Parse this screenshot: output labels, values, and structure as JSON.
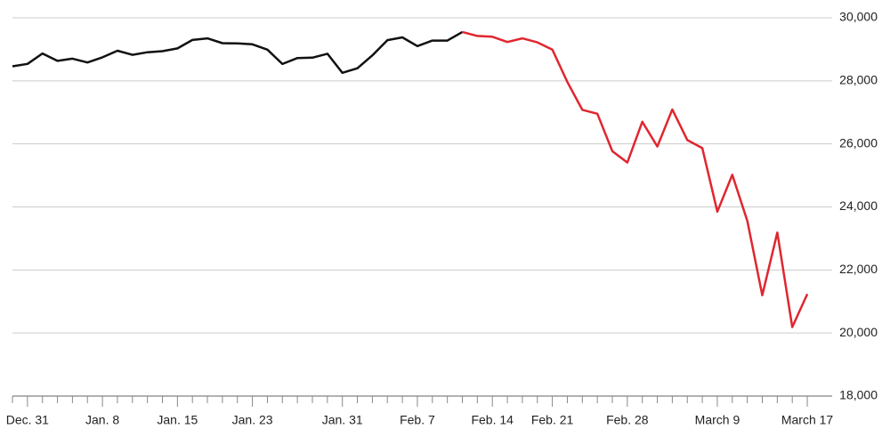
{
  "chart_data": {
    "type": "line",
    "categories": [
      null,
      "Dec. 31",
      null,
      null,
      null,
      null,
      "Jan. 8",
      null,
      null,
      null,
      null,
      "Jan. 15",
      null,
      null,
      null,
      null,
      "Jan. 23",
      null,
      null,
      null,
      null,
      null,
      "Jan. 31",
      null,
      null,
      null,
      null,
      "Feb. 7",
      null,
      null,
      null,
      null,
      "Feb. 14",
      null,
      null,
      null,
      "Feb. 21",
      null,
      null,
      null,
      null,
      "Feb. 28",
      null,
      null,
      null,
      null,
      null,
      "March 9",
      null,
      null,
      null,
      null,
      null,
      "March 17"
    ],
    "series": [
      {
        "color": "#111111",
        "values": [
          28462,
          28538,
          28868,
          28634,
          28703,
          28583,
          28745,
          28956,
          28824,
          28907,
          28940,
          29030,
          29298,
          29348,
          29196,
          29186,
          29160,
          28990,
          28536,
          28723,
          28734,
          28859,
          28256,
          28400,
          28808,
          29291,
          29380,
          29103,
          29276,
          29276,
          29551,
          null,
          null,
          null,
          null,
          null,
          null,
          null,
          null,
          null,
          null,
          null,
          null,
          null,
          null,
          null,
          null,
          null,
          null,
          null,
          null,
          null,
          null,
          null
        ]
      },
      {
        "color": "#e0262f",
        "values": [
          null,
          null,
          null,
          null,
          null,
          null,
          null,
          null,
          null,
          null,
          null,
          null,
          null,
          null,
          null,
          null,
          null,
          null,
          null,
          null,
          null,
          null,
          null,
          null,
          null,
          null,
          null,
          null,
          null,
          null,
          29551,
          29424,
          29398,
          29232,
          29348,
          29220,
          28992,
          27961,
          27081,
          26957,
          25767,
          25409,
          26703,
          25917,
          27091,
          26121,
          25865,
          23851,
          25018,
          23553,
          21200,
          23186,
          20189,
          21237
        ]
      }
    ],
    "ylim": [
      18000,
      30000
    ],
    "yticks": [
      {
        "value": 18000,
        "label": "18,000"
      },
      {
        "value": 20000,
        "label": "20,000"
      },
      {
        "value": 22000,
        "label": "22,000"
      },
      {
        "value": 24000,
        "label": "24,000"
      },
      {
        "value": 26000,
        "label": "26,000"
      },
      {
        "value": 28000,
        "label": "28,000"
      },
      {
        "value": 30000,
        "label": "30,000"
      }
    ],
    "grid": true
  }
}
